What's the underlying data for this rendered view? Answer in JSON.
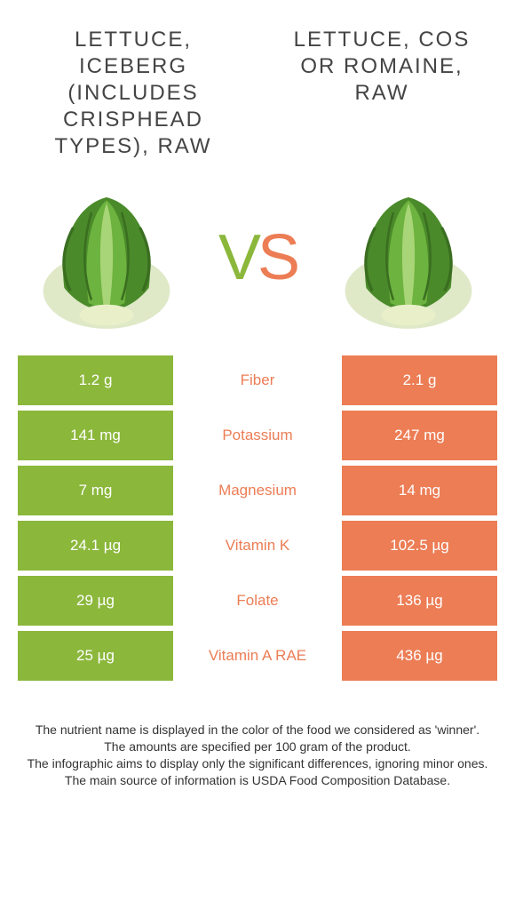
{
  "colors": {
    "left_food": "#8bb73b",
    "right_food": "#ec7d55",
    "bg": "#ffffff",
    "text": "#333333"
  },
  "left_title": "LETTUCE, ICEBERG (INCLUDES CRISPHEAD TYPES), RAW",
  "right_title": "LETTUCE, COS OR ROMAINE, RAW",
  "vs_label": "VS",
  "table": {
    "type": "comparison-table",
    "rows": [
      {
        "nutrient": "Fiber",
        "left": "1.2 g",
        "right": "2.1 g",
        "winner": "right"
      },
      {
        "nutrient": "Potassium",
        "left": "141 mg",
        "right": "247 mg",
        "winner": "right"
      },
      {
        "nutrient": "Magnesium",
        "left": "7 mg",
        "right": "14 mg",
        "winner": "right"
      },
      {
        "nutrient": "Vitamin K",
        "left": "24.1 µg",
        "right": "102.5 µg",
        "winner": "right"
      },
      {
        "nutrient": "Folate",
        "left": "29 µg",
        "right": "136 µg",
        "winner": "right"
      },
      {
        "nutrient": "Vitamin A RAE",
        "left": "25 µg",
        "right": "436 µg",
        "winner": "right"
      }
    ]
  },
  "footer_lines": [
    "The nutrient name is displayed in the color of the food we considered as 'winner'.",
    "The amounts are specified per 100 gram of the product.",
    "The infographic aims to display only the significant differences, ignoring minor ones.",
    "The main source of information is USDA Food Composition Database."
  ]
}
